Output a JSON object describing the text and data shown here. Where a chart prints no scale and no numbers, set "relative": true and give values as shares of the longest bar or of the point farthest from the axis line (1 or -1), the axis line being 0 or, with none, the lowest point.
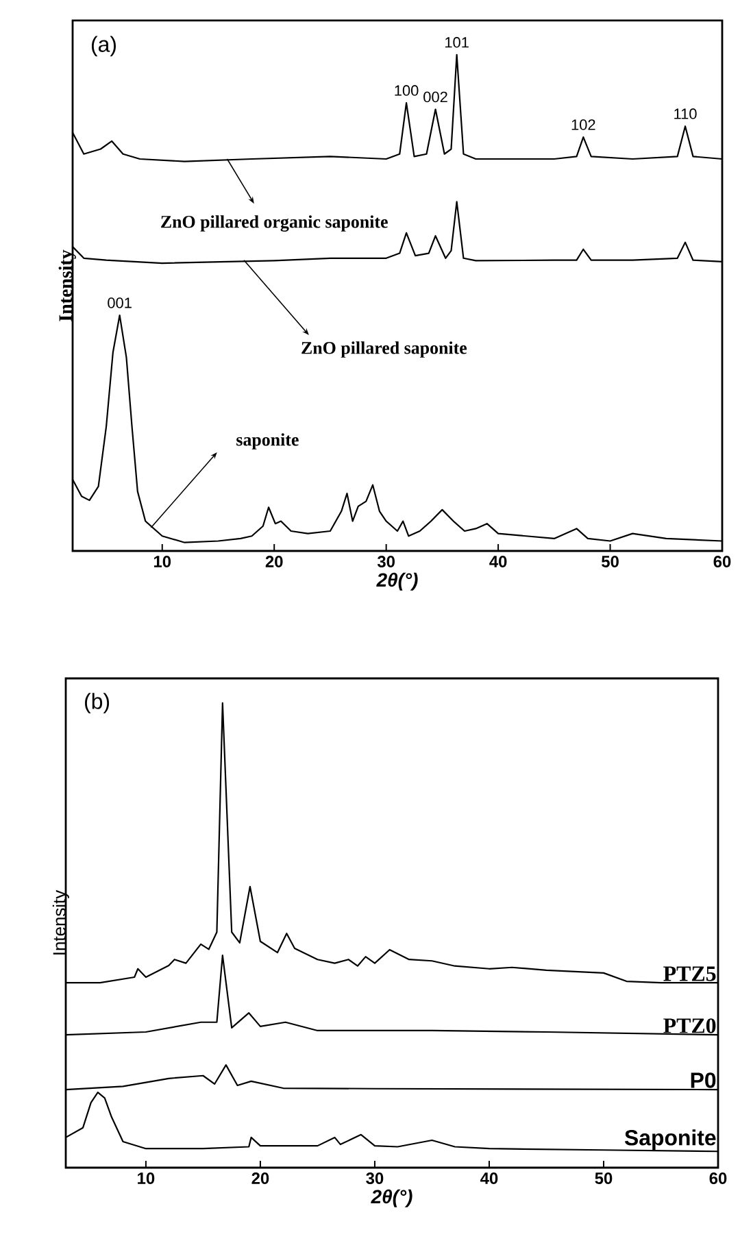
{
  "chart_data": [
    {
      "type": "line",
      "title": "(a)",
      "xlabel": "2θ(°)",
      "ylabel": "Intensity",
      "relative": true,
      "xlim": [
        2,
        60
      ],
      "xticks": [
        10,
        20,
        30,
        40,
        50,
        60
      ],
      "marker": "none",
      "line_style": "solid",
      "series": [
        {
          "color": "#000000",
          "x": [
            2,
            3,
            4.5,
            5.5,
            6.5,
            8,
            12,
            18,
            25,
            30,
            31.2,
            31.8,
            32.5,
            33.6,
            34.4,
            35.2,
            35.8,
            36.3,
            36.9,
            38,
            45,
            47,
            47.6,
            48.3,
            52,
            56,
            56.7,
            57.4,
            60
          ],
          "values": [
            0.843,
            0.8,
            0.81,
            0.826,
            0.8,
            0.79,
            0.785,
            0.79,
            0.795,
            0.79,
            0.8,
            0.903,
            0.795,
            0.8,
            0.89,
            0.8,
            0.81,
            1.0,
            0.8,
            0.79,
            0.79,
            0.795,
            0.834,
            0.795,
            0.79,
            0.795,
            0.856,
            0.795,
            0.79
          ]
        },
        {
          "color": "#000000",
          "x": [
            2,
            3,
            5,
            10,
            20,
            25,
            30,
            31.2,
            31.8,
            32.6,
            33.8,
            34.4,
            35.3,
            35.8,
            36.3,
            36.9,
            38,
            45,
            47,
            47.6,
            48.3,
            52,
            56,
            56.7,
            57.4,
            60
          ],
          "values": [
            0.613,
            0.59,
            0.586,
            0.58,
            0.585,
            0.59,
            0.59,
            0.6,
            0.641,
            0.595,
            0.6,
            0.635,
            0.59,
            0.605,
            0.704,
            0.59,
            0.585,
            0.586,
            0.586,
            0.608,
            0.586,
            0.586,
            0.59,
            0.622,
            0.586,
            0.583
          ]
        },
        {
          "color": "#000000",
          "x": [
            2,
            2.8,
            3.5,
            4.3,
            5.0,
            5.6,
            6.2,
            6.8,
            7.3,
            7.8,
            8.5,
            10,
            12,
            15,
            17,
            18,
            19,
            19.5,
            20.1,
            20.6,
            21.5,
            23,
            25,
            26,
            26.5,
            27,
            27.5,
            28.2,
            28.8,
            29.4,
            30,
            31,
            31.5,
            32,
            33,
            34,
            35,
            36,
            37,
            38,
            39,
            40,
            45,
            47,
            48,
            50,
            52,
            55,
            60
          ],
          "values": [
            0.144,
            0.11,
            0.102,
            0.13,
            0.25,
            0.4,
            0.475,
            0.39,
            0.25,
            0.12,
            0.06,
            0.03,
            0.017,
            0.02,
            0.025,
            0.03,
            0.05,
            0.088,
            0.055,
            0.06,
            0.04,
            0.035,
            0.04,
            0.08,
            0.116,
            0.06,
            0.09,
            0.1,
            0.133,
            0.08,
            0.06,
            0.04,
            0.06,
            0.03,
            0.04,
            0.06,
            0.083,
            0.06,
            0.04,
            0.045,
            0.055,
            0.035,
            0.025,
            0.045,
            0.025,
            0.02,
            0.035,
            0.025,
            0.02
          ]
        }
      ],
      "annotations": [
        {
          "text": "100",
          "x": 31.8,
          "y": 0.903
        },
        {
          "text": "002",
          "x": 34.4,
          "y": 0.89
        },
        {
          "text": "101",
          "x": 36.3,
          "y": 1.0
        },
        {
          "text": "102",
          "x": 47.6,
          "y": 0.834
        },
        {
          "text": "110",
          "x": 56.7,
          "y": 0.856
        },
        {
          "text": "001",
          "x": 6.2,
          "y": 0.475
        },
        {
          "text": "ZnO pillared organic saponite",
          "x": 15.8,
          "y": 0.79
        },
        {
          "text": "ZnO pillared saponite",
          "x": 17.3,
          "y": 0.586
        },
        {
          "text": "saponite",
          "x": 9.0,
          "y": 0.047
        }
      ]
    },
    {
      "type": "line",
      "title": "(b)",
      "xlabel": "2θ(°)",
      "ylabel": "Intensity",
      "relative": true,
      "xlim": [
        3,
        60
      ],
      "xticks": [
        10,
        20,
        30,
        40,
        50,
        60
      ],
      "marker": "none",
      "line_style": "solid",
      "series": [
        {
          "name": "PTZ5",
          "color": "#000000",
          "x": [
            3,
            6,
            9,
            9.3,
            10,
            12,
            12.5,
            13.5,
            14.8,
            15.5,
            16.2,
            16.7,
            17.5,
            18.2,
            19.1,
            20,
            21.5,
            22.3,
            23,
            25,
            26.5,
            27.7,
            28.5,
            29.2,
            30,
            31.3,
            33,
            35,
            37,
            40,
            42,
            45,
            50,
            52,
            55,
            60
          ],
          "values": [
            0.398,
            0.398,
            0.41,
            0.428,
            0.41,
            0.435,
            0.448,
            0.44,
            0.481,
            0.47,
            0.507,
            1.0,
            0.507,
            0.484,
            0.605,
            0.487,
            0.463,
            0.504,
            0.472,
            0.448,
            0.44,
            0.448,
            0.434,
            0.454,
            0.44,
            0.469,
            0.448,
            0.445,
            0.434,
            0.428,
            0.431,
            0.425,
            0.419,
            0.401,
            0.398,
            0.398
          ]
        },
        {
          "name": "PTZ0",
          "color": "#000000",
          "x": [
            3,
            10,
            14.8,
            16.2,
            16.7,
            17.5,
            19,
            20,
            22.2,
            25,
            30,
            35,
            45,
            60
          ],
          "values": [
            0.286,
            0.292,
            0.313,
            0.313,
            0.457,
            0.301,
            0.333,
            0.304,
            0.313,
            0.295,
            0.295,
            0.295,
            0.292,
            0.286
          ]
        },
        {
          "name": "P0",
          "color": "#000000",
          "x": [
            3,
            8,
            12,
            15,
            16,
            17,
            18,
            19.2,
            22,
            30,
            60
          ],
          "values": [
            0.168,
            0.175,
            0.192,
            0.198,
            0.18,
            0.221,
            0.177,
            0.186,
            0.171,
            0.17,
            0.168
          ]
        },
        {
          "name": "Saponite",
          "color": "#000000",
          "x": [
            3,
            4.5,
            5.2,
            5.8,
            6.4,
            7,
            8,
            10,
            15,
            19,
            19.2,
            20,
            25,
            26.5,
            27,
            28.8,
            30,
            32,
            35,
            37,
            40,
            50,
            60
          ],
          "values": [
            0.065,
            0.086,
            0.14,
            0.162,
            0.15,
            0.109,
            0.056,
            0.041,
            0.041,
            0.045,
            0.065,
            0.047,
            0.047,
            0.065,
            0.05,
            0.071,
            0.047,
            0.045,
            0.059,
            0.045,
            0.041,
            0.038,
            0.035
          ]
        }
      ]
    }
  ]
}
